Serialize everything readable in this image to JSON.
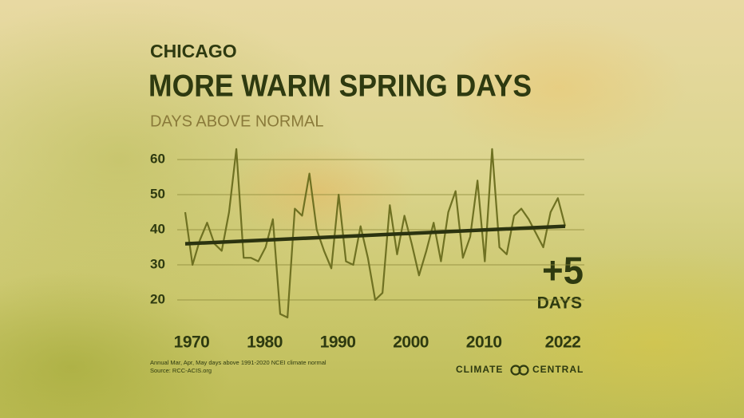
{
  "chart_data": {
    "type": "line",
    "kicker": "CHICAGO",
    "title": "MORE WARM SPRING DAYS",
    "subtitle": "DAYS ABOVE NORMAL",
    "x": [
      1970,
      1971,
      1972,
      1973,
      1974,
      1975,
      1976,
      1977,
      1978,
      1979,
      1980,
      1981,
      1982,
      1983,
      1984,
      1985,
      1986,
      1987,
      1988,
      1989,
      1990,
      1991,
      1992,
      1993,
      1994,
      1995,
      1996,
      1997,
      1998,
      1999,
      2000,
      2001,
      2002,
      2003,
      2004,
      2005,
      2006,
      2007,
      2008,
      2009,
      2010,
      2011,
      2012,
      2013,
      2014,
      2015,
      2016,
      2017,
      2018,
      2019,
      2020,
      2021,
      2022
    ],
    "values": [
      45,
      30,
      37,
      42,
      36,
      34,
      45,
      63,
      32,
      32,
      31,
      35,
      43,
      16,
      15,
      46,
      44,
      56,
      40,
      34,
      29,
      50,
      31,
      30,
      41,
      32,
      20,
      22,
      47,
      33,
      44,
      36,
      27,
      34,
      42,
      31,
      45,
      51,
      32,
      38,
      54,
      31,
      63,
      35,
      33,
      44,
      46,
      43,
      39,
      35,
      45,
      49,
      41
    ],
    "color": "#6f7122",
    "trend": {
      "x": [
        1970,
        2022
      ],
      "values": [
        36,
        41
      ],
      "color": "#2b3310"
    },
    "xlim": [
      1970,
      2022
    ],
    "xticks": [
      1970,
      1980,
      1990,
      2000,
      2010,
      2022
    ],
    "ylim": [
      14,
      64
    ],
    "yticks": [
      20,
      30,
      40,
      50,
      60
    ],
    "grid": true,
    "annotation": {
      "big": "+5",
      "small": "DAYS"
    },
    "notes": [
      "Annual Mar, Apr, May days above 1991-2020 NCEI climate normal",
      "Source: RCC-ACIS.org"
    ],
    "logo": [
      "CLIMATE",
      "CENTRAL"
    ]
  }
}
